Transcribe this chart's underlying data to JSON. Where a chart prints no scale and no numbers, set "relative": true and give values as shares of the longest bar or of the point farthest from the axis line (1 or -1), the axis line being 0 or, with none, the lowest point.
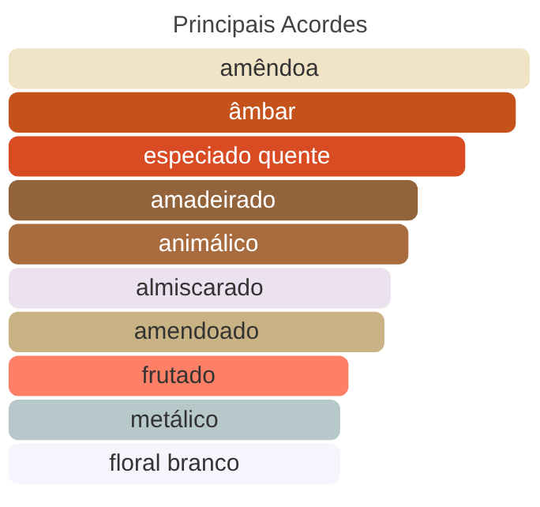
{
  "chart_data": {
    "type": "bar",
    "orientation": "horizontal",
    "relative": true,
    "title": "Principais Acordes",
    "categories": [
      "amêndoa",
      "âmbar",
      "especiado quente",
      "amadeirado",
      "animálico",
      "almiscarado",
      "amendoado",
      "frutado",
      "metálico",
      "floral branco"
    ],
    "values": [
      1,
      0.973,
      0.876,
      0.785,
      0.767,
      0.733,
      0.721,
      0.652,
      0.636,
      0.636
    ],
    "colors": [
      "#f0e3c6",
      "#c4521a",
      "#d94c23",
      "#93643c",
      "#a86c3e",
      "#ece1ef",
      "#c9b384",
      "#fc7f66",
      "#b7c8ca",
      "#f4f5fd"
    ],
    "grid": false
  }
}
